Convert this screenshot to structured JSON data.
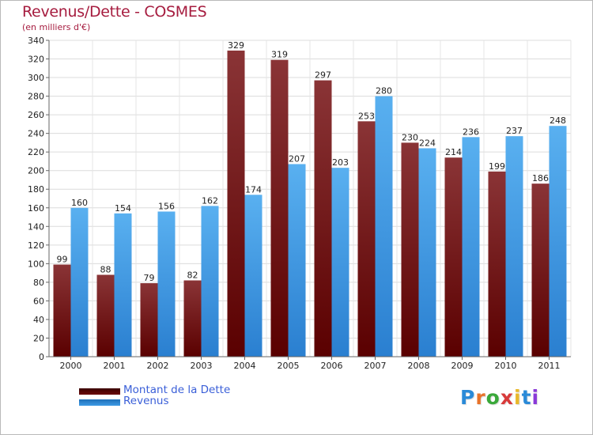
{
  "title": "Revenus/Dette - COSMES",
  "subtitle": "(en milliers d'€)",
  "logo": {
    "text": "Proxiti",
    "letters": [
      {
        "ch": "P",
        "color": "#2a8ad8"
      },
      {
        "ch": "r",
        "color": "#e8732a"
      },
      {
        "ch": "o",
        "color": "#3aa83a"
      },
      {
        "ch": "x",
        "color": "#d83a3a"
      },
      {
        "ch": "i",
        "color": "#e8b82a"
      },
      {
        "ch": "t",
        "color": "#2a8ad8"
      },
      {
        "ch": "i",
        "color": "#8a3ad8"
      }
    ]
  },
  "legend": [
    {
      "label": "Montant de la Dette",
      "color": "#6b0a0a"
    },
    {
      "label": "Revenus",
      "color": "#3d9be5"
    }
  ],
  "chart_data": {
    "type": "bar",
    "title": "Revenus/Dette - COSMES",
    "subtitle": "(en milliers d'€)",
    "xlabel": "",
    "ylabel": "",
    "ylim": [
      0,
      340
    ],
    "ytick_step": 20,
    "grid": true,
    "legend_position": "bottom-left",
    "categories": [
      "2000",
      "2001",
      "2002",
      "2003",
      "2004",
      "2005",
      "2006",
      "2007",
      "2008",
      "2009",
      "2010",
      "2011"
    ],
    "series": [
      {
        "name": "Montant de la Dette",
        "color": "#6b0a0a",
        "values": [
          99,
          88,
          79,
          82,
          329,
          319,
          297,
          253,
          230,
          214,
          199,
          186
        ]
      },
      {
        "name": "Revenus",
        "color": "#3d9be5",
        "values": [
          160,
          154,
          156,
          162,
          174,
          207,
          203,
          280,
          224,
          236,
          237,
          248
        ]
      }
    ]
  }
}
